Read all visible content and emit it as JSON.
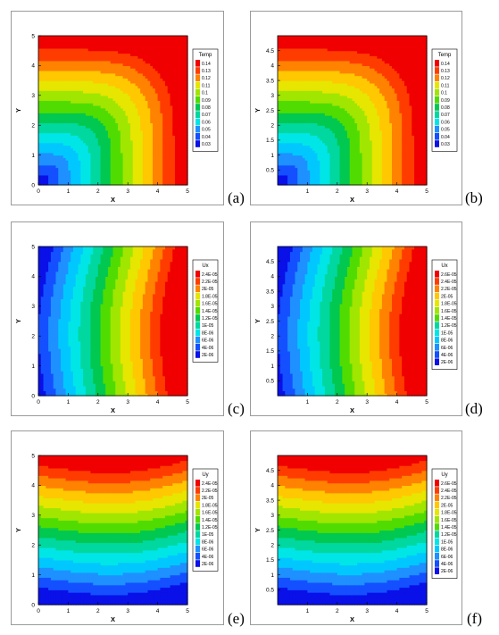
{
  "panels": [
    {
      "id": "a",
      "caption": "(a)",
      "field": "temp",
      "legend_title": "Temp",
      "legend_levels": [
        "0.14",
        "0.13",
        "0.12",
        "0.11",
        "0.1",
        "0.09",
        "0.08",
        "0.07",
        "0.06",
        "0.05",
        "0.04",
        "0.03"
      ],
      "xlabel": "X",
      "ylabel": "Y",
      "xticks": [
        "0",
        "1",
        "2",
        "3",
        "4",
        "5"
      ],
      "yticks": [
        "0",
        "1",
        "2",
        "3",
        "4",
        "5"
      ]
    },
    {
      "id": "b",
      "caption": "(b)",
      "field": "temp",
      "legend_title": "Temp",
      "legend_levels": [
        "0.14",
        "0.13",
        "0.12",
        "0.11",
        "0.1",
        "0.09",
        "0.08",
        "0.07",
        "0.06",
        "0.05",
        "0.04",
        "0.03"
      ],
      "xlabel": "X",
      "ylabel": "Y",
      "xticks": [
        "1",
        "2",
        "3",
        "4",
        "5"
      ],
      "yticks": [
        "0.5",
        "1",
        "1.5",
        "2",
        "2.5",
        "3",
        "3.5",
        "4",
        "4.5"
      ]
    },
    {
      "id": "c",
      "caption": "(c)",
      "field": "ux",
      "legend_title": "Ux",
      "legend_levels": [
        "2.4E-05",
        "2.2E-05",
        "2E-05",
        "1.8E-05",
        "1.6E-05",
        "1.4E-05",
        "1.2E-05",
        "1E-05",
        "8E-06",
        "6E-06",
        "4E-06",
        "2E-06"
      ],
      "xlabel": "X",
      "ylabel": "Y",
      "xticks": [
        "0",
        "1",
        "2",
        "3",
        "4",
        "5"
      ],
      "yticks": [
        "0",
        "1",
        "2",
        "3",
        "4",
        "5"
      ]
    },
    {
      "id": "d",
      "caption": "(d)",
      "field": "ux",
      "legend_title": "Ux",
      "legend_levels": [
        "2.6E-05",
        "2.4E-05",
        "2.2E-05",
        "2E-05",
        "1.8E-05",
        "1.6E-05",
        "1.4E-05",
        "1.2E-05",
        "1E-05",
        "8E-06",
        "6E-06",
        "4E-06",
        "2E-06"
      ],
      "xlabel": "X",
      "ylabel": "Y",
      "xticks": [
        "1",
        "2",
        "3",
        "4",
        "5"
      ],
      "yticks": [
        "0.5",
        "1",
        "1.5",
        "2",
        "2.5",
        "3",
        "3.5",
        "4",
        "4.5"
      ]
    },
    {
      "id": "e",
      "caption": "(e)",
      "field": "uy",
      "legend_title": "Uy",
      "legend_levels": [
        "2.4E-05",
        "2.2E-05",
        "2E-05",
        "1.8E-05",
        "1.6E-05",
        "1.4E-05",
        "1.2E-05",
        "1E-05",
        "8E-06",
        "6E-06",
        "4E-06",
        "2E-06"
      ],
      "xlabel": "X",
      "ylabel": "Y",
      "xticks": [
        "0",
        "1",
        "2",
        "3",
        "4",
        "5"
      ],
      "yticks": [
        "0",
        "1",
        "2",
        "3",
        "4",
        "5"
      ]
    },
    {
      "id": "f",
      "caption": "(f)",
      "field": "uy",
      "legend_title": "Uy",
      "legend_levels": [
        "2.6E-05",
        "2.4E-05",
        "2.2E-05",
        "2E-05",
        "1.8E-05",
        "1.6E-05",
        "1.4E-05",
        "1.2E-05",
        "1E-05",
        "8E-06",
        "6E-06",
        "4E-06",
        "2E-06"
      ],
      "xlabel": "X",
      "ylabel": "Y",
      "xticks": [
        "1",
        "2",
        "3",
        "4",
        "5"
      ],
      "yticks": [
        "0.5",
        "1",
        "1.5",
        "2",
        "2.5",
        "3",
        "3.5",
        "4",
        "4.5"
      ]
    }
  ],
  "colors": {
    "colormap": [
      "#0a10e8",
      "#1450ff",
      "#1e90ff",
      "#00c8ff",
      "#00e6e6",
      "#00d8a0",
      "#00c850",
      "#50dc00",
      "#a0e600",
      "#e6e600",
      "#ffc800",
      "#ff8200",
      "#ff3c00",
      "#f00000"
    ]
  }
}
